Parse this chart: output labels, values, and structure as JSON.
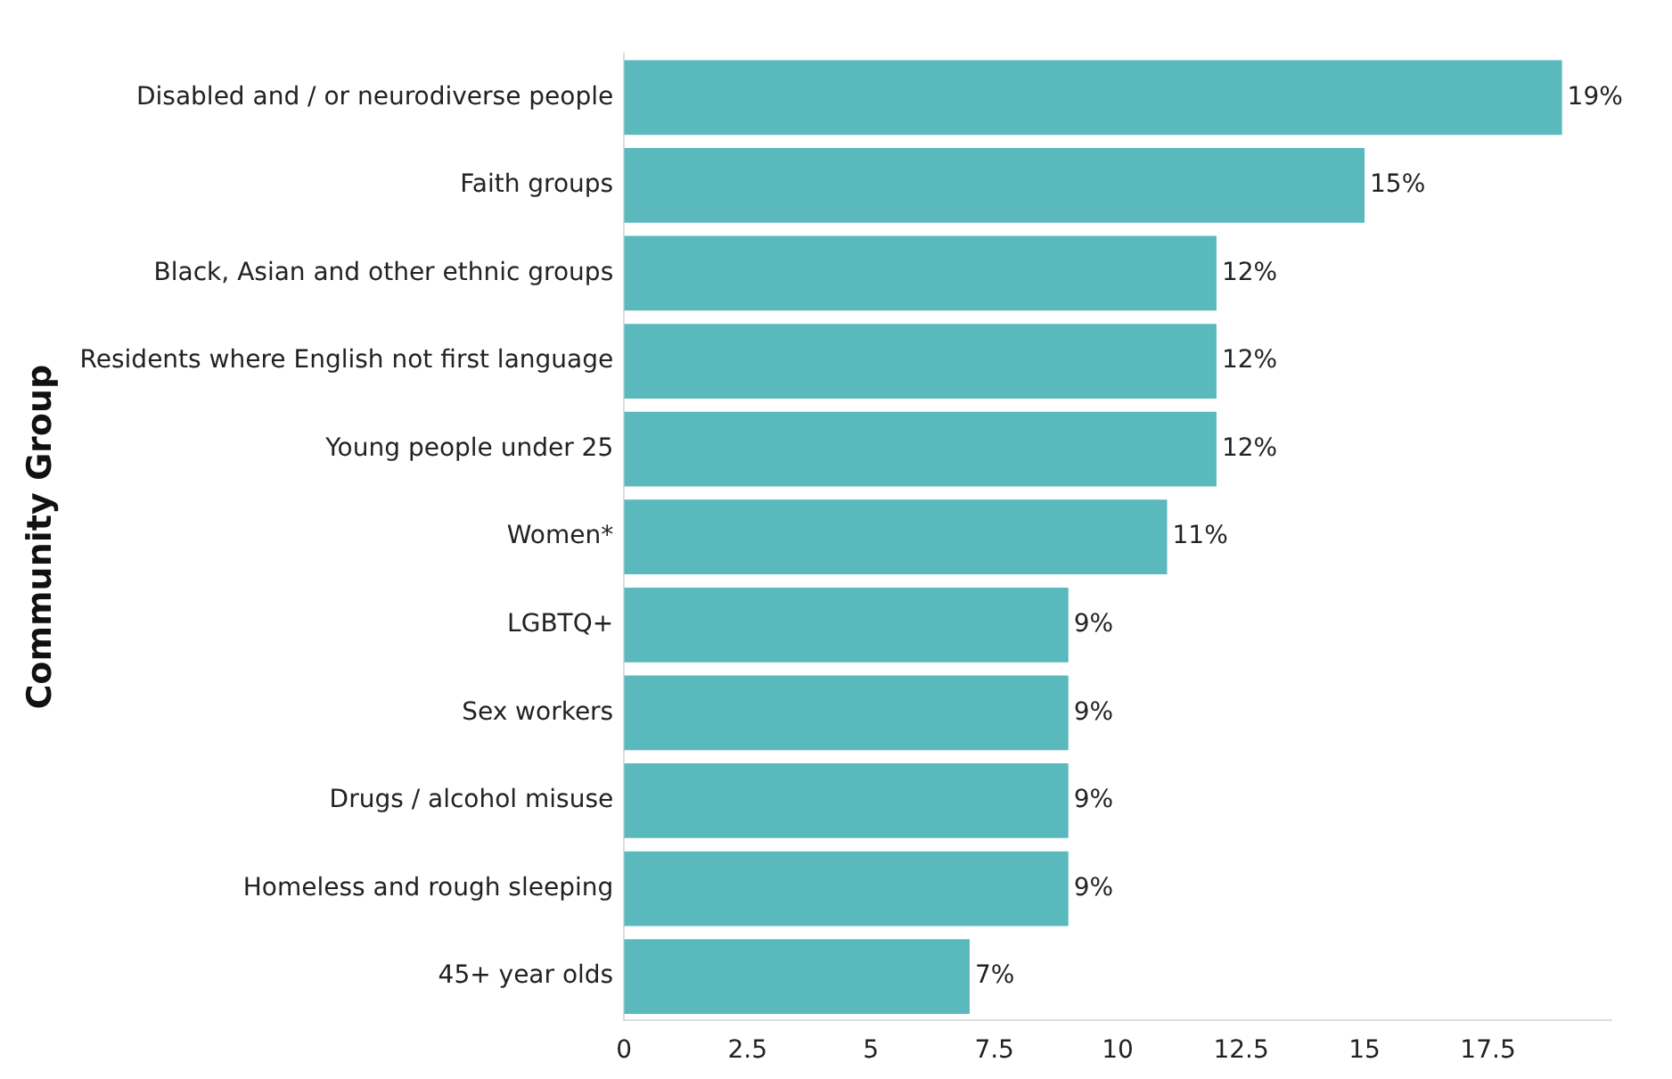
{
  "chart_data": {
    "type": "bar",
    "orientation": "horizontal",
    "ylabel": "Community Group",
    "categories": [
      "Disabled and / or neurodiverse people",
      "Faith groups",
      "Black, Asian and other ethnic groups",
      "Residents where English not first language",
      "Young people under 25",
      "Women*",
      "LGBTQ+",
      "Sex workers",
      "Drugs / alcohol misuse",
      "Homeless and rough sleeping",
      "45+ year olds"
    ],
    "values": [
      19,
      15,
      12,
      12,
      12,
      11,
      9,
      9,
      9,
      9,
      7
    ],
    "value_labels": [
      "19%",
      "15%",
      "12%",
      "12%",
      "12%",
      "11%",
      "9%",
      "9%",
      "9%",
      "9%",
      "7%"
    ],
    "color": "#5ab9bc",
    "xlim": [
      0,
      20
    ],
    "xticks": [
      0,
      2.5,
      5,
      7.5,
      10,
      12.5,
      15,
      17.5
    ],
    "grid": false,
    "legend": false
  }
}
